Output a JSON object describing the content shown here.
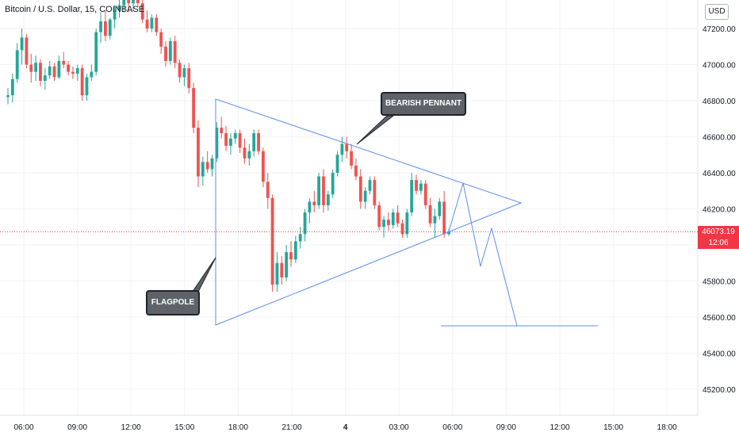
{
  "header": {
    "symbol_title": "Bitcoin / U.S. Dollar, 15, COINBASE",
    "currency_button": "USD"
  },
  "price_tag": {
    "price": "46073.19",
    "countdown": "12:06"
  },
  "annotations": {
    "pennant_label": "BEARISH PENNANT",
    "flagpole_label": "FLAGPOLE"
  },
  "colors": {
    "up": "#26a69a",
    "down": "#ef5350",
    "drawing": "#5b8def",
    "price_line": "#f23645",
    "grid": "#f0f3fa",
    "callout_bg": "#5d6369"
  },
  "chart_data": {
    "type": "candlestick",
    "title": "Bitcoin / U.S. Dollar, 15, COINBASE",
    "interval": "15",
    "exchange": "COINBASE",
    "y_ticks": [
      47200,
      47000,
      46800,
      46600,
      46400,
      46200,
      46000,
      45800,
      45600,
      45400,
      45200
    ],
    "y_tick_labels": [
      "47200.00",
      "47000.00",
      "46800.00",
      "46600.00",
      "46400.00",
      "46200.00",
      "46000.00",
      "45800.00",
      "45600.00",
      "45400.00",
      "45200.00"
    ],
    "ylim": [
      45060,
      47310
    ],
    "x_ticks": [
      "06:00",
      "09:00",
      "12:00",
      "15:00",
      "18:00",
      "21:00",
      "4",
      "03:00",
      "06:00",
      "09:00",
      "12:00",
      "15:00",
      "18:00"
    ],
    "last_price": 46073.19,
    "grid": true,
    "candles": [
      [
        46820,
        46870,
        46780,
        46830
      ],
      [
        46830,
        46950,
        46790,
        46920
      ],
      [
        46920,
        47120,
        46900,
        47080
      ],
      [
        47080,
        47200,
        47000,
        47150
      ],
      [
        47150,
        47170,
        46980,
        47000
      ],
      [
        47000,
        47060,
        46900,
        46960
      ],
      [
        46960,
        47050,
        46910,
        47010
      ],
      [
        47010,
        47030,
        46880,
        46910
      ],
      [
        46910,
        46980,
        46860,
        46940
      ],
      [
        46940,
        47020,
        46920,
        46990
      ],
      [
        46990,
        47010,
        46910,
        46930
      ],
      [
        46930,
        47050,
        46920,
        47020
      ],
      [
        47020,
        47070,
        46980,
        47000
      ],
      [
        47000,
        47020,
        46940,
        46960
      ],
      [
        46960,
        46990,
        46920,
        46950
      ],
      [
        46950,
        47000,
        46910,
        46980
      ],
      [
        46980,
        47000,
        46800,
        46830
      ],
      [
        46830,
        46950,
        46800,
        46930
      ],
      [
        46930,
        47000,
        46910,
        46960
      ],
      [
        46960,
        47200,
        46940,
        47180
      ],
      [
        47180,
        47290,
        47120,
        47240
      ],
      [
        47240,
        47300,
        47130,
        47160
      ],
      [
        47160,
        47260,
        47140,
        47250
      ],
      [
        47250,
        47330,
        47200,
        47300
      ],
      [
        47300,
        47360,
        47260,
        47330
      ],
      [
        47330,
        47380,
        47290,
        47360
      ],
      [
        47360,
        47400,
        47290,
        47340
      ],
      [
        47340,
        47390,
        47300,
        47380
      ],
      [
        47380,
        47420,
        47320,
        47340
      ],
      [
        47340,
        47370,
        47230,
        47250
      ],
      [
        47250,
        47300,
        47180,
        47200
      ],
      [
        47200,
        47280,
        47180,
        47260
      ],
      [
        47260,
        47280,
        47160,
        47180
      ],
      [
        47180,
        47200,
        47060,
        47100
      ],
      [
        47100,
        47130,
        46990,
        47020
      ],
      [
        47020,
        47150,
        47000,
        47130
      ],
      [
        47130,
        47160,
        46980,
        47010
      ],
      [
        47010,
        47030,
        46900,
        46930
      ],
      [
        46930,
        47000,
        46880,
        46980
      ],
      [
        46980,
        47010,
        46840,
        46870
      ],
      [
        46870,
        46900,
        46620,
        46650
      ],
      [
        46650,
        46690,
        46320,
        46380
      ],
      [
        46380,
        46490,
        46330,
        46460
      ],
      [
        46460,
        46520,
        46400,
        46420
      ],
      [
        46420,
        46500,
        46380,
        46480
      ],
      [
        46480,
        46680,
        46460,
        46650
      ],
      [
        46650,
        46710,
        46590,
        46620
      ],
      [
        46620,
        46660,
        46520,
        46550
      ],
      [
        46550,
        46620,
        46500,
        46590
      ],
      [
        46590,
        46640,
        46560,
        46620
      ],
      [
        46620,
        46640,
        46510,
        46540
      ],
      [
        46540,
        46590,
        46450,
        46480
      ],
      [
        46480,
        46560,
        46440,
        46520
      ],
      [
        46520,
        46640,
        46490,
        46620
      ],
      [
        46620,
        46640,
        46500,
        46520
      ],
      [
        46520,
        46540,
        46320,
        46350
      ],
      [
        46350,
        46400,
        46200,
        46260
      ],
      [
        46260,
        46280,
        45740,
        45780
      ],
      [
        45780,
        45960,
        45740,
        45900
      ],
      [
        45900,
        45940,
        45780,
        45820
      ],
      [
        45820,
        46000,
        45800,
        45960
      ],
      [
        45960,
        46020,
        45880,
        45920
      ],
      [
        45920,
        46050,
        45900,
        46020
      ],
      [
        46020,
        46100,
        45980,
        46060
      ],
      [
        46060,
        46200,
        46020,
        46180
      ],
      [
        46180,
        46260,
        46120,
        46240
      ],
      [
        46240,
        46300,
        46180,
        46220
      ],
      [
        46220,
        46400,
        46200,
        46380
      ],
      [
        46380,
        46420,
        46180,
        46220
      ],
      [
        46220,
        46300,
        46190,
        46280
      ],
      [
        46280,
        46420,
        46260,
        46400
      ],
      [
        46400,
        46520,
        46380,
        46500
      ],
      [
        46500,
        46600,
        46460,
        46560
      ],
      [
        46560,
        46600,
        46480,
        46520
      ],
      [
        46520,
        46560,
        46420,
        46440
      ],
      [
        46440,
        46480,
        46360,
        46380
      ],
      [
        46380,
        46420,
        46200,
        46240
      ],
      [
        46240,
        46320,
        46200,
        46300
      ],
      [
        46300,
        46380,
        46280,
        46360
      ],
      [
        46360,
        46380,
        46200,
        46220
      ],
      [
        46220,
        46240,
        46080,
        46100
      ],
      [
        46100,
        46160,
        46040,
        46140
      ],
      [
        46140,
        46180,
        46080,
        46110
      ],
      [
        46110,
        46200,
        46090,
        46180
      ],
      [
        46180,
        46220,
        46100,
        46120
      ],
      [
        46120,
        46140,
        46040,
        46060
      ],
      [
        46060,
        46200,
        46040,
        46180
      ],
      [
        46180,
        46400,
        46160,
        46360
      ],
      [
        46360,
        46390,
        46280,
        46300
      ],
      [
        46300,
        46360,
        46280,
        46340
      ],
      [
        46340,
        46360,
        46200,
        46220
      ],
      [
        46220,
        46260,
        46100,
        46120
      ],
      [
        46120,
        46200,
        46040,
        46160
      ],
      [
        46160,
        46260,
        46140,
        46240
      ],
      [
        46240,
        46300,
        46040,
        46060
      ],
      [
        46060,
        46090,
        46050,
        46073
      ]
    ]
  }
}
